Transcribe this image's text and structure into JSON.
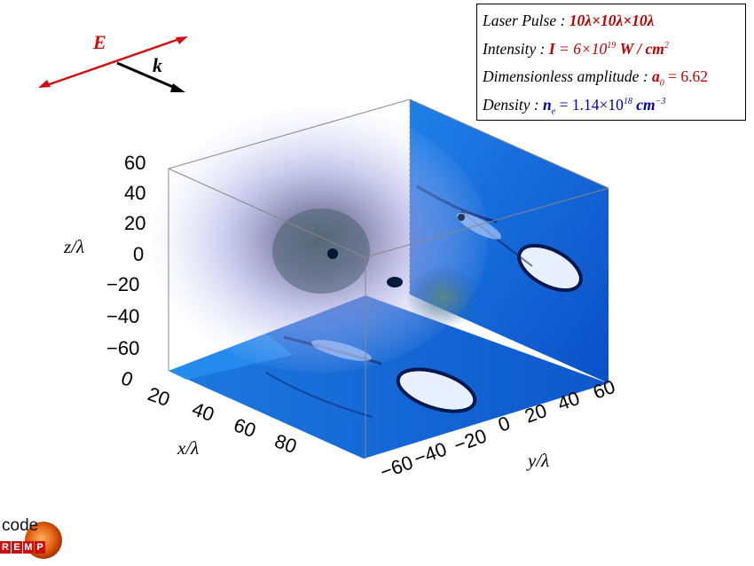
{
  "field_labels": {
    "e_field": "E",
    "wave_vector": "k"
  },
  "info_box": {
    "laser_pulse_label": "Laser Pulse",
    "laser_pulse_value": "10λ×10λ×10λ",
    "intensity_label": "Intensity",
    "intensity_sym": "I",
    "intensity_mantissa": "= 6×10",
    "intensity_exp": "19",
    "intensity_unit": "W / cm",
    "intensity_unit_exp": "2",
    "amplitude_label": "Dimensionless amplitude",
    "amplitude_sym": "a",
    "amplitude_sub": "0",
    "amplitude_value": "= 6.62",
    "density_label": "Density",
    "density_sym": "n",
    "density_sub": "e",
    "density_mantissa": "= 1.14×10",
    "density_exp": "18",
    "density_unit": "cm",
    "density_unit_exp": "−3"
  },
  "axes": {
    "z_label": "z/λ",
    "x_label": "x/λ",
    "y_label": "y/λ",
    "z_ticks": [
      "60",
      "40",
      "20",
      "0",
      "−20",
      "−40",
      "−60"
    ],
    "x_ticks": [
      "0",
      "20",
      "40",
      "60",
      "80"
    ],
    "y_ticks": [
      "−60",
      "−40",
      "−20",
      "0",
      "20",
      "40",
      "60"
    ]
  },
  "logo": {
    "word": "code",
    "letters": [
      "R",
      "E",
      "M",
      "P"
    ]
  },
  "colors": {
    "e_field": "#d01010",
    "wave_vector": "#000000",
    "density": "#1060d0"
  }
}
